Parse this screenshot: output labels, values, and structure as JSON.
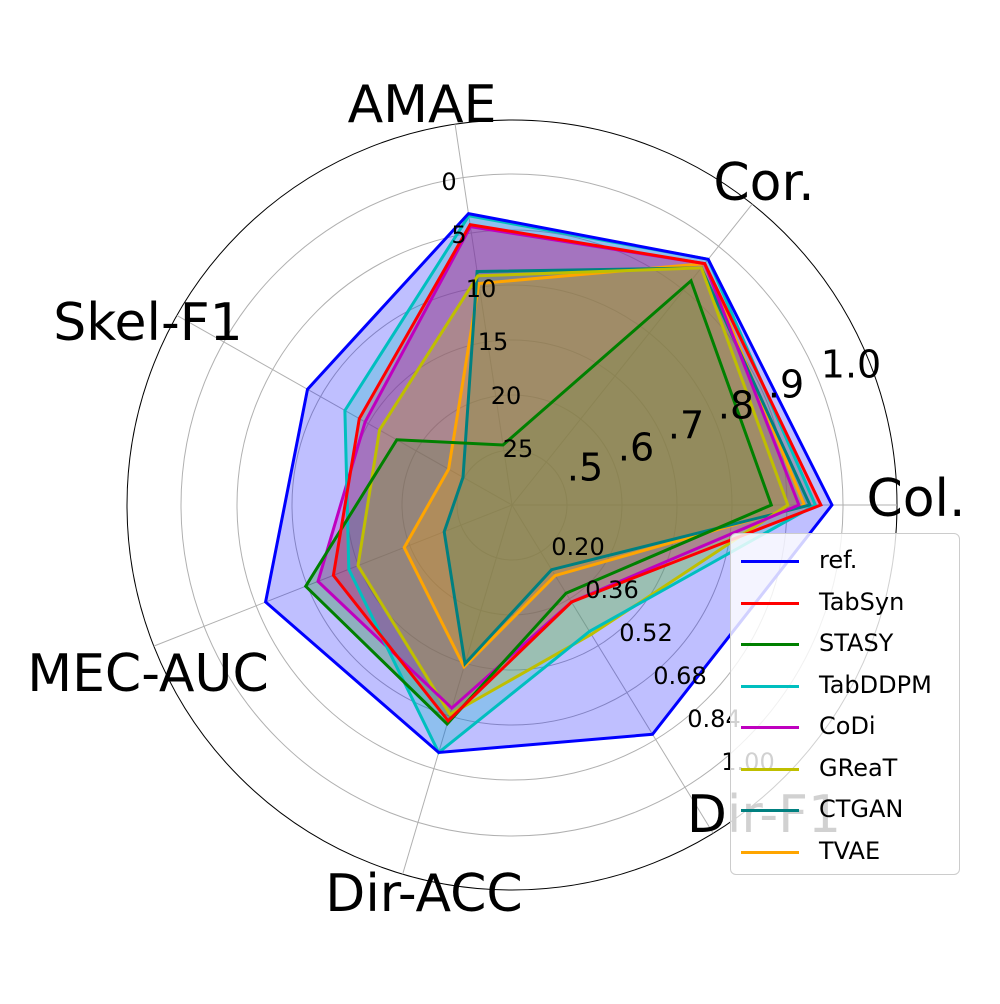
{
  "chart_data": {
    "type": "radar",
    "axes": [
      {
        "label": "Col.",
        "ticks": [
          ".5",
          ".6",
          ".7",
          ".8",
          ".9",
          "1.0"
        ],
        "range": [
          0.4,
          1.0
        ]
      },
      {
        "label": "Cor.",
        "ticks": [],
        "range": [
          0.4,
          1.0
        ]
      },
      {
        "label": "AMAE",
        "ticks": [
          "0",
          "5",
          "10",
          "15",
          "20",
          "25"
        ],
        "range": [
          30,
          0
        ]
      },
      {
        "label": "Skel-F1",
        "ticks": [],
        "range": [
          0,
          1
        ]
      },
      {
        "label": "MEC-AUC",
        "ticks": [],
        "range": [
          0,
          1
        ]
      },
      {
        "label": "Dir-ACC",
        "ticks": [],
        "range": [
          0,
          1
        ]
      },
      {
        "label": "Dir-F1",
        "ticks": [
          "0.20",
          "0.36",
          "0.52",
          "0.68",
          "0.84",
          "1.00"
        ],
        "range": [
          0.04,
          1.0
        ]
      }
    ],
    "grid": true,
    "legend_position": "lower-right",
    "series": [
      {
        "name": "ref.",
        "color": "#0000ff",
        "fill": true,
        "values": [
          0.98,
          0.97,
          3.3,
          0.71,
          0.8,
          0.78,
          0.82
        ]
      },
      {
        "name": "TabSyn",
        "color": "#ff0000",
        "fill": true,
        "values": [
          0.96,
          0.96,
          4.3,
          0.53,
          0.58,
          0.68,
          0.37
        ]
      },
      {
        "name": "STASY",
        "color": "#008000",
        "fill": true,
        "values": [
          0.87,
          0.92,
          24.5,
          0.4,
          0.67,
          0.69,
          0.34
        ]
      },
      {
        "name": "TabDDPM",
        "color": "#00bfbf",
        "fill": true,
        "values": [
          0.95,
          0.97,
          3.5,
          0.58,
          0.53,
          0.78,
          0.47
        ]
      },
      {
        "name": "CoDi",
        "color": "#bf00bf",
        "fill": true,
        "values": [
          0.92,
          0.96,
          4.5,
          0.51,
          0.63,
          0.64,
          0.37
        ]
      },
      {
        "name": "GReaT",
        "color": "#bfbf00",
        "fill": true,
        "values": [
          0.9,
          0.95,
          9.0,
          0.46,
          0.5,
          0.66,
          0.48
        ]
      },
      {
        "name": "CTGAN",
        "color": "#008080",
        "fill": true,
        "values": [
          0.94,
          0.95,
          8.6,
          0.17,
          0.22,
          0.5,
          0.26
        ]
      },
      {
        "name": "TVAE",
        "color": "#ffa500",
        "fill": true,
        "values": [
          0.93,
          0.96,
          9.7,
          0.22,
          0.35,
          0.51,
          0.28
        ]
      }
    ]
  }
}
